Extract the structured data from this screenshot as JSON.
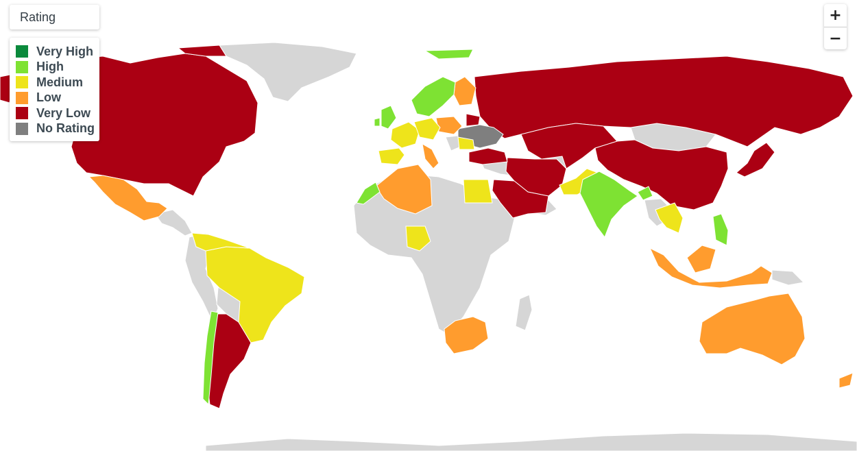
{
  "filter": {
    "label": "Rating"
  },
  "legend": {
    "items": [
      {
        "label": "Very High",
        "color": "#0b8a3c"
      },
      {
        "label": "High",
        "color": "#7ee233"
      },
      {
        "label": "Medium",
        "color": "#eee41b"
      },
      {
        "label": "Low",
        "color": "#ff9c2e"
      },
      {
        "label": "Very Low",
        "color": "#ab0013"
      },
      {
        "label": "No Rating",
        "color": "#7f7f7f"
      }
    ]
  },
  "zoom": {
    "in_label": "+",
    "out_label": "−"
  },
  "map": {
    "ocean_color": "#ffffff",
    "unrated_land_color": "#d6d6d6",
    "border_color": "#ffffff"
  }
}
